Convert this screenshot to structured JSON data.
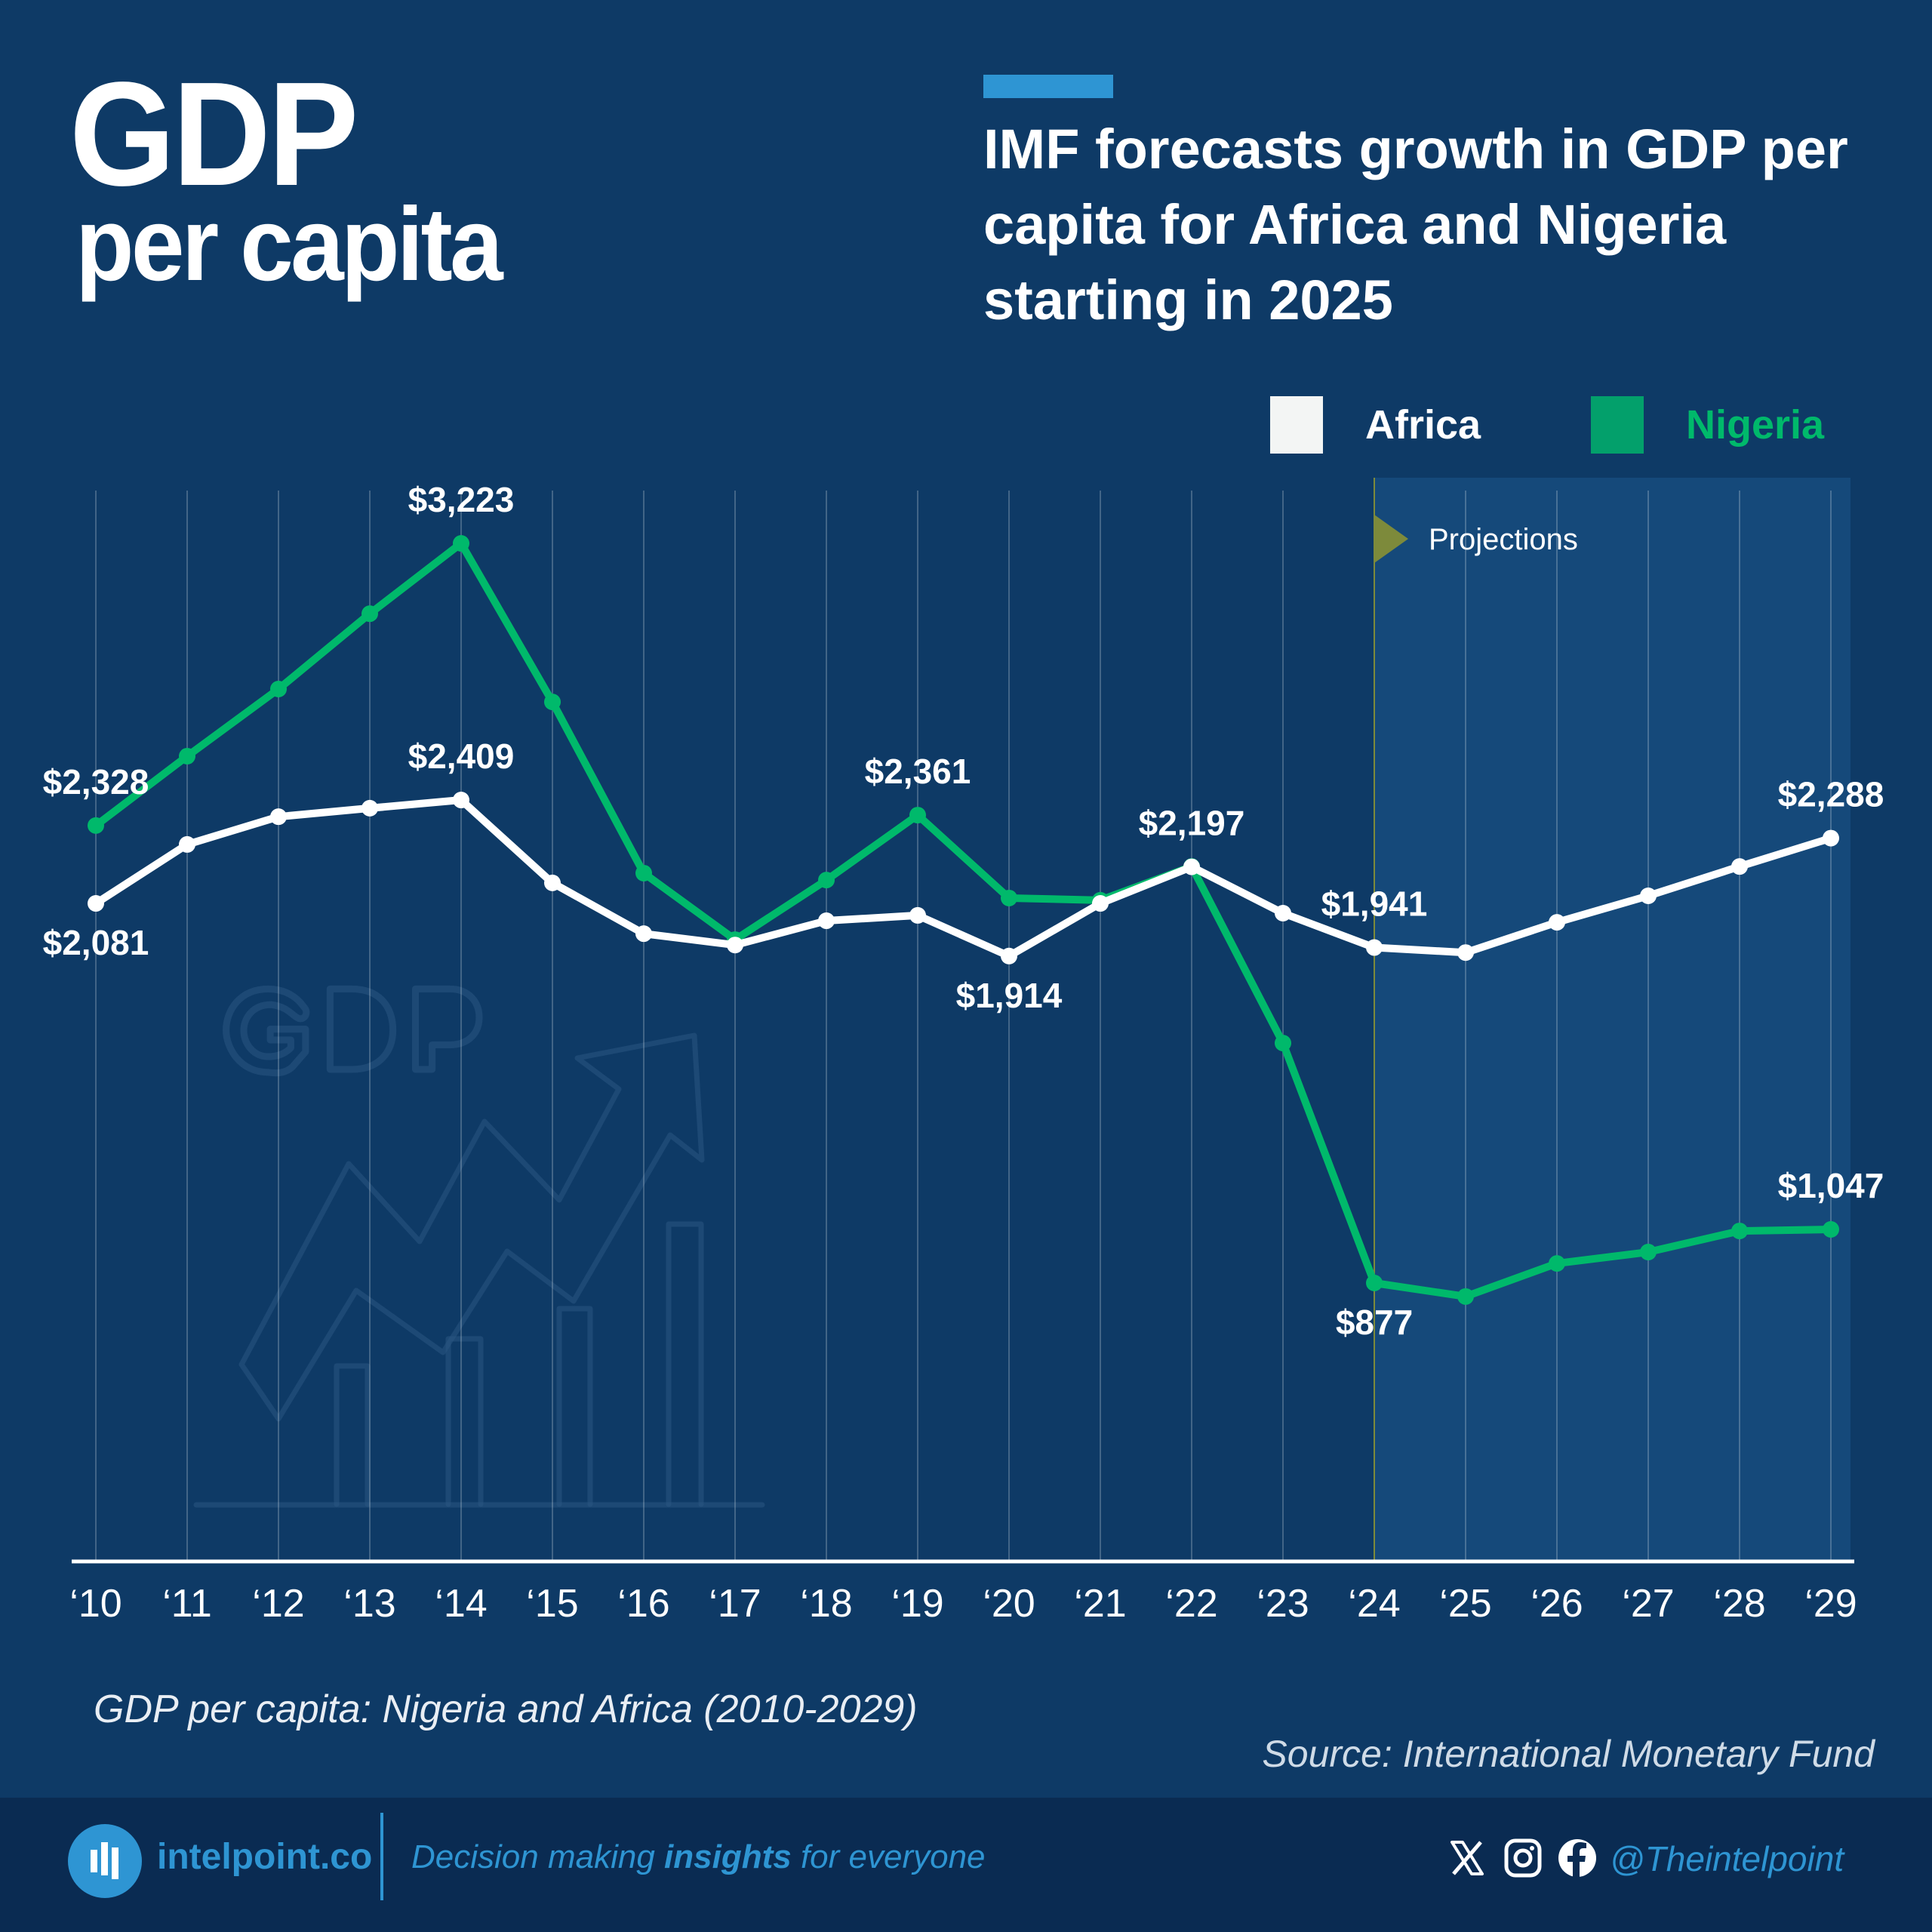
{
  "header": {
    "title_line1": "GDP",
    "title_line2": "per capita",
    "headline": "IMF forecasts growth in GDP per capita for Africa and Nigeria starting in 2025"
  },
  "legend": [
    {
      "label": "Africa",
      "color": "#f3f5f4",
      "label_color": "#ffffff"
    },
    {
      "label": "Nigeria",
      "color": "#03a06b",
      "label_color": "#00b96b"
    }
  ],
  "colors": {
    "background": "#0e3a66",
    "projection_band": "#15497a",
    "accent": "#2e95d3",
    "africa_line": "#ffffff",
    "nigeria_line": "#00b96b",
    "projection_marker": "#7d8a3b",
    "footer": "#0a2b52"
  },
  "chart_data": {
    "type": "line",
    "title": "GDP per capita: Nigeria and Africa (2010-2029)",
    "xlabel": "",
    "ylabel": "",
    "x": [
      "'10",
      "'11",
      "'12",
      "'13",
      "'14",
      "'15",
      "'16",
      "'17",
      "'18",
      "'19",
      "'20",
      "'21",
      "'22",
      "'23",
      "'24",
      "'25",
      "'26",
      "'27",
      "'28",
      "'29"
    ],
    "years": [
      2010,
      2011,
      2012,
      2013,
      2014,
      2015,
      2016,
      2017,
      2018,
      2019,
      2020,
      2021,
      2022,
      2023,
      2024,
      2025,
      2026,
      2027,
      2028,
      2029
    ],
    "ylim": [
      0,
      3500
    ],
    "grid": "vertical",
    "legend_position": "top-right",
    "projection_start_year": 2024,
    "projection_label": "Projections",
    "series": [
      {
        "name": "Africa",
        "values": [
          2081,
          2268,
          2356,
          2383,
          2409,
          2146,
          1985,
          1949,
          2026,
          2043,
          1914,
          2081,
          2197,
          2050,
          1941,
          1925,
          2021,
          2105,
          2198,
          2288
        ],
        "labels": [
          {
            "index": 0,
            "text": "$2,081",
            "position": "below"
          },
          {
            "index": 4,
            "text": "$2,409",
            "position": "above"
          },
          {
            "index": 10,
            "text": "$1,914",
            "position": "below"
          },
          {
            "index": 12,
            "text": "$2,197",
            "position": "above"
          },
          {
            "index": 14,
            "text": "$1,941",
            "position": "above"
          },
          {
            "index": 19,
            "text": "$2,288",
            "position": "above"
          }
        ]
      },
      {
        "name": "Nigeria",
        "values": [
          2328,
          2548,
          2761,
          3000,
          3223,
          2720,
          2177,
          1966,
          2155,
          2361,
          2098,
          2091,
          2198,
          1638,
          877,
          834,
          939,
          975,
          1042,
          1047
        ],
        "labels": [
          {
            "index": 0,
            "text": "$2,328",
            "position": "above"
          },
          {
            "index": 4,
            "text": "$3,223",
            "position": "above"
          },
          {
            "index": 9,
            "text": "$2,361",
            "position": "above"
          },
          {
            "index": 14,
            "text": "$877",
            "position": "below"
          },
          {
            "index": 19,
            "text": "$1,047",
            "position": "above"
          }
        ]
      }
    ]
  },
  "caption": "GDP per capita: Nigeria and Africa (2010-2029)",
  "source": "Source: International Monetary Fund",
  "footer": {
    "brand": "intelpoint.co",
    "tagline_pre": "Decision making ",
    "tagline_bold": "insights",
    "tagline_post": " for everyone",
    "social_icons": [
      "x-icon",
      "instagram-icon",
      "facebook-icon"
    ],
    "handle": "@Theintelpoint"
  }
}
